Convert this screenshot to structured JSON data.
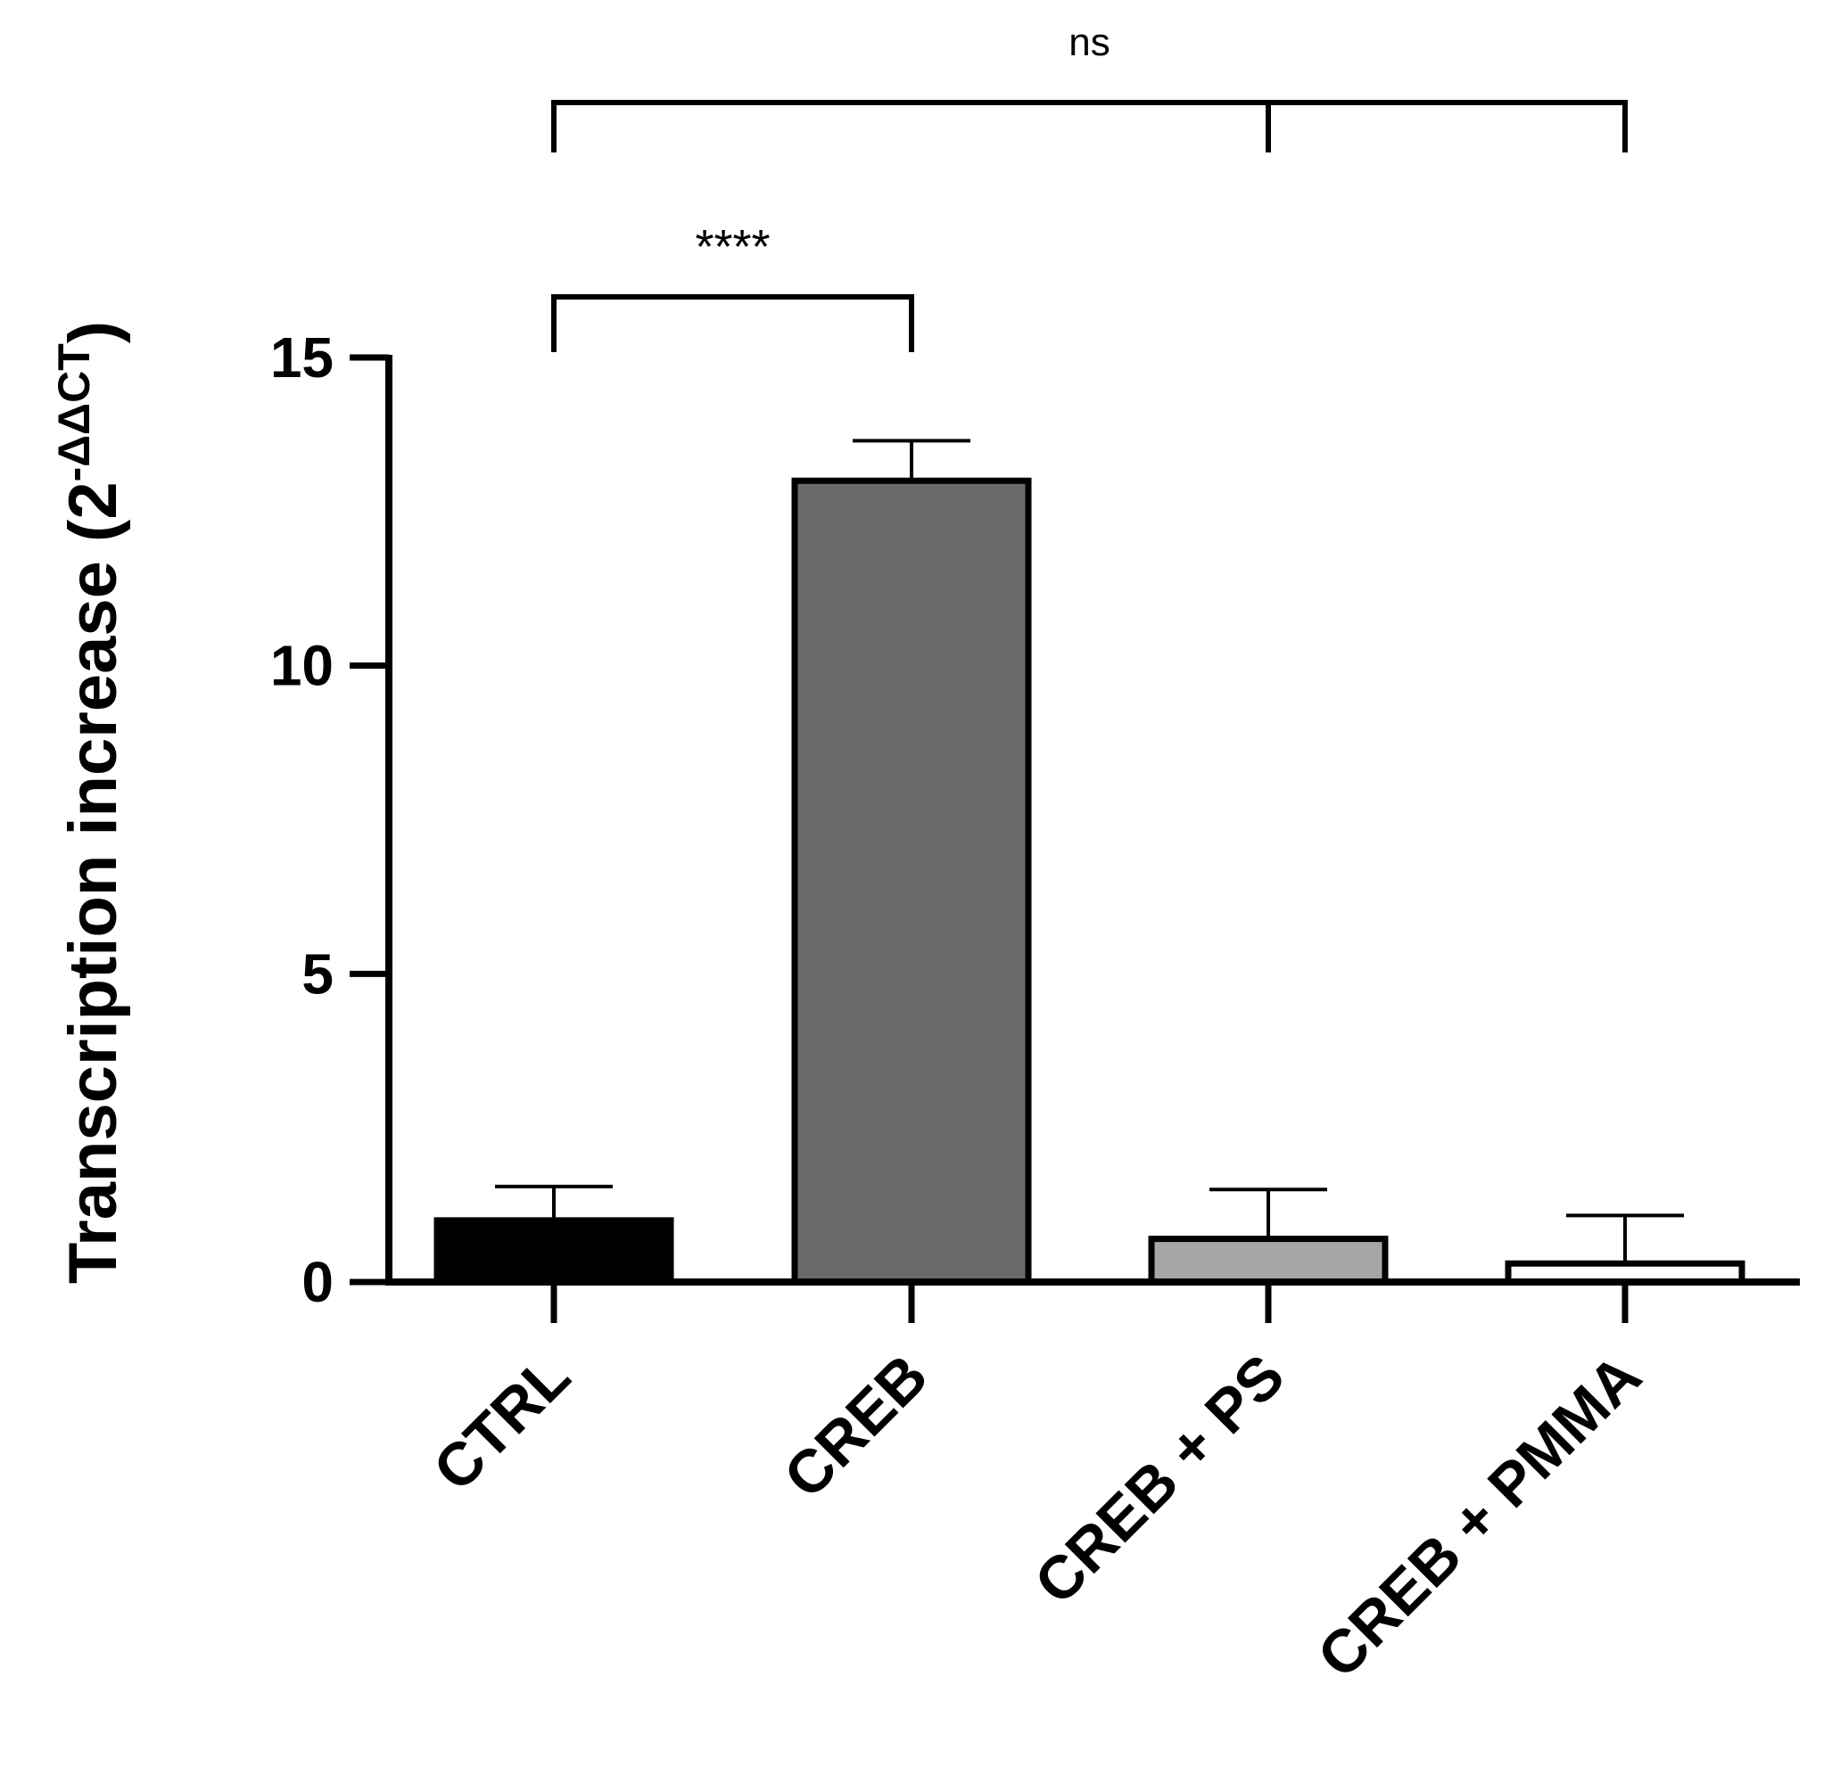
{
  "chart_data": {
    "type": "bar",
    "categories": [
      "CTRL",
      "CREB",
      "CREB + PS",
      "CREB + PMMA"
    ],
    "values": [
      1.0,
      13.0,
      0.7,
      0.3
    ],
    "errors": [
      0.55,
      0.65,
      0.8,
      0.78
    ],
    "colors": [
      "#000000",
      "#6a6a6a",
      "#a6a6a6",
      "#ffffff"
    ],
    "ylabel": {
      "main": "Transcription increase (2",
      "superscript": "-ΔΔCT",
      "close": ")"
    },
    "ylim": [
      0,
      15
    ],
    "yticks": [
      0,
      5,
      10,
      15
    ],
    "ytick_labels": [
      "0",
      "5",
      "10",
      "15"
    ],
    "grid": false,
    "significance": [
      {
        "groups": [
          0,
          1
        ],
        "label": "****"
      },
      {
        "groups": [
          0,
          2,
          3
        ],
        "label": "ns"
      }
    ]
  }
}
